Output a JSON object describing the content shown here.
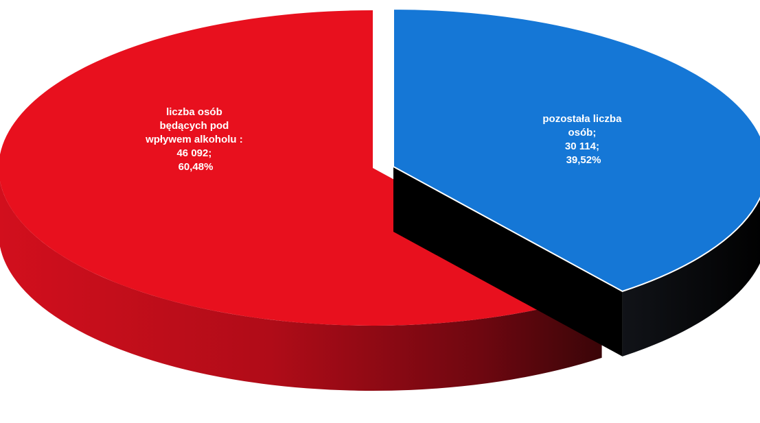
{
  "chart_data": {
    "type": "pie",
    "style": "3d-exploded",
    "title": "",
    "slices": [
      {
        "label": "liczba osób będących pod wpływem alkoholu",
        "value": 46092,
        "percent": 60.48,
        "label_lines": [
          "liczba osób",
          "będących pod",
          "wpływem alkoholu :",
          "46 092;",
          "60,48%"
        ],
        "top_color": "#e8101e",
        "side_color_light": "#c80f1c",
        "side_color_dark": "#3a0508"
      },
      {
        "label": "pozostała liczba osób",
        "value": 30114,
        "percent": 39.52,
        "label_lines": [
          "pozostała liczba",
          "osób;",
          "30 114;",
          "39,52%"
        ],
        "top_color": "#1577d6",
        "side_color_light": "#05080f",
        "side_color_dark": "#000000"
      }
    ],
    "legend": "none"
  }
}
